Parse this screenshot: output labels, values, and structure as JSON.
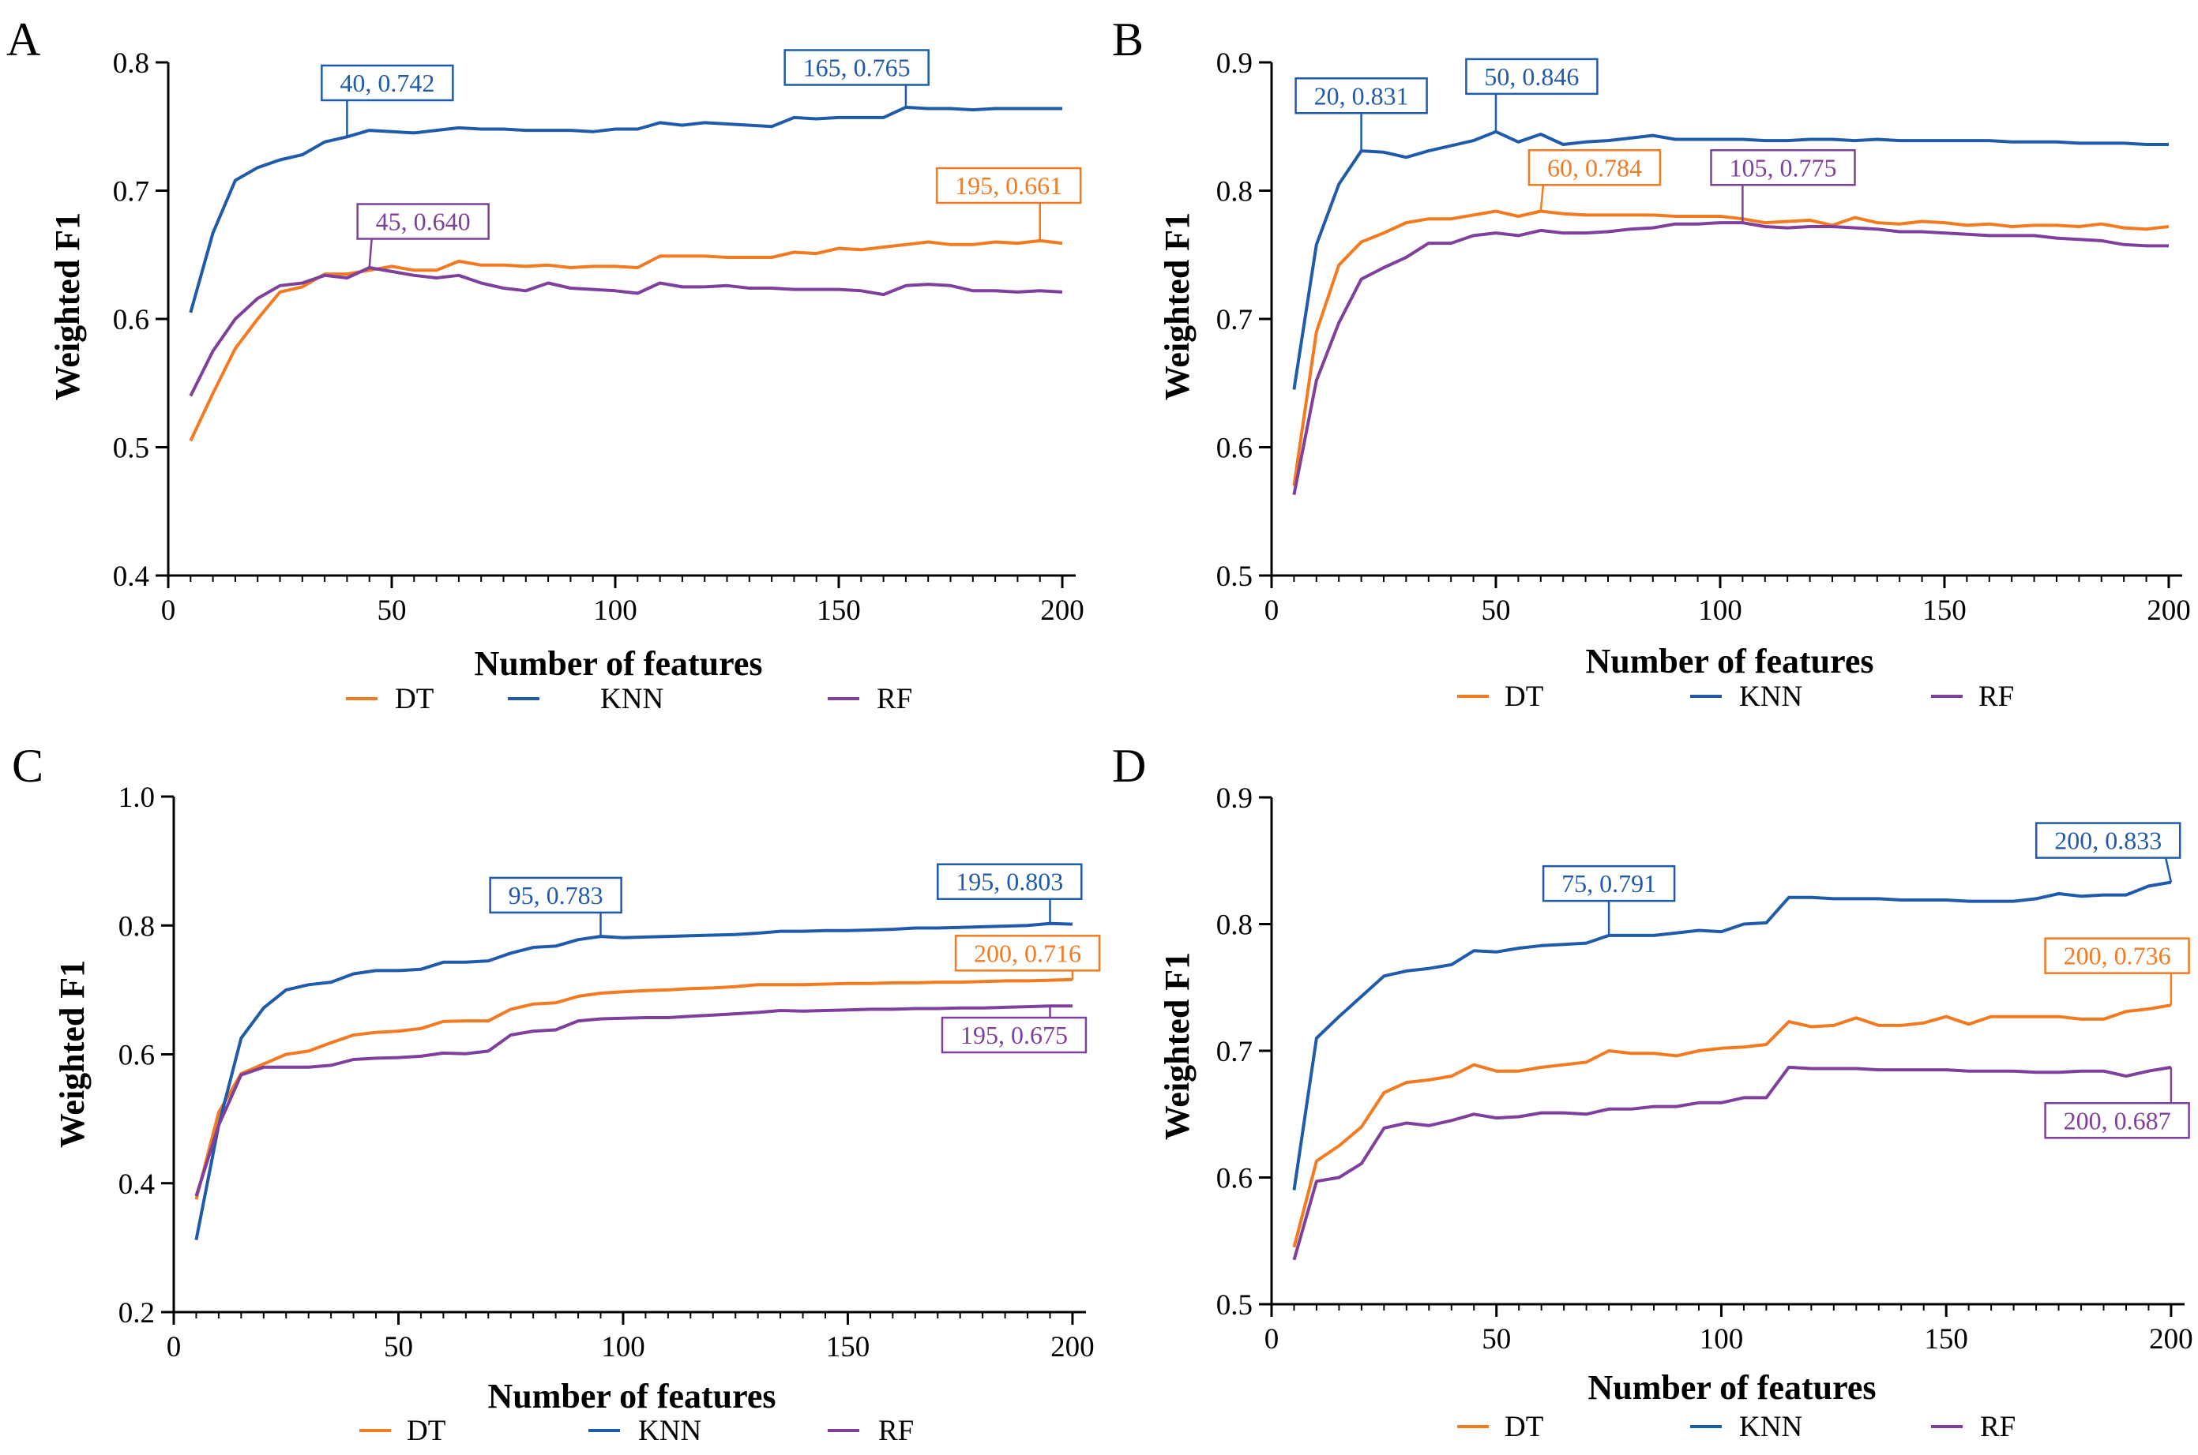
{
  "colors": {
    "DT": "#F47A20",
    "KNN": "#1F5BAA",
    "RF": "#7F3F9C",
    "axis": "#000000"
  },
  "chart_data": [
    {
      "panel": "A",
      "type": "line",
      "xlabel": "Number of features",
      "ylabel": "Weighted F1",
      "xlim": [
        0,
        203
      ],
      "ylim": [
        0.4,
        0.8
      ],
      "xticks": [
        0,
        50,
        100,
        150,
        200
      ],
      "xtick_labels": [
        "0",
        "50",
        "100",
        "150",
        "200"
      ],
      "yticks": [
        0.4,
        0.5,
        0.6,
        0.7,
        0.8
      ],
      "ytick_labels": [
        "0.4",
        "0.5",
        "0.6",
        "0.7",
        "0.8"
      ],
      "x": [
        5,
        10,
        15,
        20,
        25,
        30,
        35,
        40,
        45,
        50,
        55,
        60,
        65,
        70,
        75,
        80,
        85,
        90,
        95,
        100,
        105,
        110,
        115,
        120,
        125,
        130,
        135,
        140,
        145,
        150,
        155,
        160,
        165,
        170,
        175,
        180,
        185,
        190,
        195,
        200
      ],
      "series": [
        {
          "name": "DT",
          "color_key": "DT",
          "values": [
            0.505,
            0.542,
            0.577,
            0.6,
            0.621,
            0.625,
            0.635,
            0.635,
            0.638,
            0.641,
            0.638,
            0.638,
            0.645,
            0.642,
            0.642,
            0.641,
            0.642,
            0.64,
            0.641,
            0.641,
            0.64,
            0.649,
            0.649,
            0.649,
            0.648,
            0.648,
            0.648,
            0.652,
            0.651,
            0.655,
            0.654,
            0.656,
            0.658,
            0.66,
            0.658,
            0.658,
            0.66,
            0.659,
            0.661,
            0.659
          ]
        },
        {
          "name": "KNN",
          "color_key": "KNN",
          "values": [
            0.605,
            0.667,
            0.708,
            0.718,
            0.724,
            0.728,
            0.738,
            0.742,
            0.747,
            0.746,
            0.745,
            0.747,
            0.749,
            0.748,
            0.748,
            0.747,
            0.747,
            0.747,
            0.746,
            0.748,
            0.748,
            0.753,
            0.751,
            0.753,
            0.752,
            0.751,
            0.75,
            0.757,
            0.756,
            0.757,
            0.757,
            0.757,
            0.765,
            0.764,
            0.764,
            0.763,
            0.764,
            0.764,
            0.764,
            0.764
          ]
        },
        {
          "name": "RF",
          "color_key": "RF",
          "values": [
            0.54,
            0.575,
            0.6,
            0.616,
            0.626,
            0.628,
            0.634,
            0.632,
            0.64,
            0.637,
            0.634,
            0.632,
            0.634,
            0.628,
            0.624,
            0.622,
            0.628,
            0.624,
            0.623,
            0.622,
            0.62,
            0.628,
            0.625,
            0.625,
            0.626,
            0.624,
            0.624,
            0.623,
            0.623,
            0.623,
            0.622,
            0.619,
            0.626,
            0.627,
            0.626,
            0.622,
            0.622,
            0.621,
            0.622,
            0.621
          ]
        }
      ],
      "annotations": [
        {
          "text": "40, 0.742",
          "x": 40,
          "y": 0.742,
          "color_key": "KNN",
          "bx": 49,
          "by": 0.784
        },
        {
          "text": "165, 0.765",
          "x": 165,
          "y": 0.765,
          "color_key": "KNN",
          "bx": 154,
          "by": 0.796
        },
        {
          "text": "195, 0.661",
          "x": 195,
          "y": 0.661,
          "color_key": "DT",
          "bx": 188,
          "by": 0.704
        },
        {
          "text": "45, 0.640",
          "x": 45,
          "y": 0.64,
          "color_key": "RF",
          "bx": 57,
          "by": 0.676
        }
      ],
      "legend": [
        "DT",
        "KNN",
        "RF"
      ]
    },
    {
      "panel": "B",
      "type": "line",
      "xlabel": "Number of features",
      "ylabel": "Weighted F1",
      "xlim": [
        0,
        203
      ],
      "ylim": [
        0.5,
        0.9
      ],
      "xticks": [
        0,
        50,
        100,
        150,
        200
      ],
      "xtick_labels": [
        "0",
        "50",
        "100",
        "150",
        "200"
      ],
      "yticks": [
        0.5,
        0.6,
        0.7,
        0.8,
        0.9
      ],
      "ytick_labels": [
        "0.5",
        "0.6",
        "0.7",
        "0.8",
        "0.9"
      ],
      "x": [
        5,
        10,
        15,
        20,
        25,
        30,
        35,
        40,
        45,
        50,
        55,
        60,
        65,
        70,
        75,
        80,
        85,
        90,
        95,
        100,
        105,
        110,
        115,
        120,
        125,
        130,
        135,
        140,
        145,
        150,
        155,
        160,
        165,
        170,
        175,
        180,
        185,
        190,
        195,
        200
      ],
      "series": [
        {
          "name": "DT",
          "color_key": "DT",
          "values": [
            0.57,
            0.69,
            0.742,
            0.76,
            0.767,
            0.775,
            0.778,
            0.778,
            0.781,
            0.784,
            0.78,
            0.784,
            0.782,
            0.781,
            0.781,
            0.781,
            0.781,
            0.78,
            0.78,
            0.78,
            0.778,
            0.775,
            0.776,
            0.777,
            0.773,
            0.779,
            0.775,
            0.774,
            0.776,
            0.775,
            0.773,
            0.774,
            0.772,
            0.773,
            0.773,
            0.772,
            0.774,
            0.771,
            0.77,
            0.772
          ]
        },
        {
          "name": "KNN",
          "color_key": "KNN",
          "values": [
            0.645,
            0.758,
            0.805,
            0.831,
            0.83,
            0.826,
            0.831,
            0.835,
            0.839,
            0.846,
            0.838,
            0.844,
            0.836,
            0.838,
            0.839,
            0.841,
            0.843,
            0.84,
            0.84,
            0.84,
            0.84,
            0.839,
            0.839,
            0.84,
            0.84,
            0.839,
            0.84,
            0.839,
            0.839,
            0.839,
            0.839,
            0.839,
            0.838,
            0.838,
            0.838,
            0.837,
            0.837,
            0.837,
            0.836,
            0.836
          ]
        },
        {
          "name": "RF",
          "color_key": "RF",
          "values": [
            0.563,
            0.652,
            0.697,
            0.731,
            0.74,
            0.748,
            0.759,
            0.759,
            0.765,
            0.767,
            0.765,
            0.769,
            0.767,
            0.767,
            0.768,
            0.77,
            0.771,
            0.774,
            0.774,
            0.775,
            0.775,
            0.772,
            0.771,
            0.772,
            0.772,
            0.771,
            0.77,
            0.768,
            0.768,
            0.767,
            0.766,
            0.765,
            0.765,
            0.765,
            0.763,
            0.762,
            0.761,
            0.758,
            0.757,
            0.757
          ]
        }
      ],
      "annotations": [
        {
          "text": "20, 0.831",
          "x": 20,
          "y": 0.831,
          "color_key": "KNN",
          "bx": 20,
          "by": 0.874
        },
        {
          "text": "50, 0.846",
          "x": 50,
          "y": 0.846,
          "color_key": "KNN",
          "bx": 58,
          "by": 0.889
        },
        {
          "text": "60, 0.784",
          "x": 60,
          "y": 0.784,
          "color_key": "DT",
          "bx": 72,
          "by": 0.818
        },
        {
          "text": "105, 0.775",
          "x": 105,
          "y": 0.775,
          "color_key": "RF",
          "bx": 114,
          "by": 0.818
        }
      ],
      "legend": [
        "DT",
        "KNN",
        "RF"
      ]
    },
    {
      "panel": "C",
      "type": "line",
      "xlabel": "Number of features",
      "ylabel": "Weighted F1",
      "xlim": [
        0,
        203
      ],
      "ylim": [
        0.2,
        1.0
      ],
      "xticks": [
        0,
        50,
        100,
        150,
        200
      ],
      "xtick_labels": [
        "0",
        "50",
        "100",
        "150",
        "200"
      ],
      "yticks": [
        0.2,
        0.4,
        0.6,
        0.8,
        1.0
      ],
      "ytick_labels": [
        "0.2",
        "0.4",
        "0.6",
        "0.8",
        "1.0"
      ],
      "x": [
        5,
        10,
        15,
        20,
        25,
        30,
        35,
        40,
        45,
        50,
        55,
        60,
        65,
        70,
        75,
        80,
        85,
        90,
        95,
        100,
        105,
        110,
        115,
        120,
        125,
        130,
        135,
        140,
        145,
        150,
        155,
        160,
        165,
        170,
        175,
        180,
        185,
        190,
        195,
        200
      ],
      "series": [
        {
          "name": "DT",
          "color_key": "DT",
          "values": [
            0.375,
            0.51,
            0.57,
            0.585,
            0.6,
            0.605,
            0.618,
            0.63,
            0.634,
            0.636,
            0.64,
            0.651,
            0.652,
            0.652,
            0.67,
            0.678,
            0.68,
            0.69,
            0.695,
            0.697,
            0.699,
            0.7,
            0.702,
            0.703,
            0.705,
            0.708,
            0.708,
            0.708,
            0.709,
            0.71,
            0.71,
            0.711,
            0.711,
            0.712,
            0.712,
            0.713,
            0.714,
            0.714,
            0.715,
            0.716
          ]
        },
        {
          "name": "KNN",
          "color_key": "KNN",
          "values": [
            0.312,
            0.49,
            0.625,
            0.672,
            0.7,
            0.708,
            0.712,
            0.725,
            0.73,
            0.73,
            0.732,
            0.743,
            0.743,
            0.745,
            0.757,
            0.766,
            0.768,
            0.778,
            0.783,
            0.781,
            0.782,
            0.783,
            0.784,
            0.785,
            0.786,
            0.788,
            0.791,
            0.791,
            0.792,
            0.792,
            0.793,
            0.794,
            0.796,
            0.796,
            0.797,
            0.798,
            0.799,
            0.8,
            0.803,
            0.802
          ]
        },
        {
          "name": "RF",
          "color_key": "RF",
          "values": [
            0.38,
            0.49,
            0.568,
            0.58,
            0.58,
            0.58,
            0.583,
            0.592,
            0.594,
            0.595,
            0.597,
            0.602,
            0.601,
            0.605,
            0.63,
            0.636,
            0.638,
            0.652,
            0.655,
            0.656,
            0.657,
            0.657,
            0.659,
            0.661,
            0.663,
            0.665,
            0.668,
            0.667,
            0.668,
            0.669,
            0.67,
            0.67,
            0.671,
            0.671,
            0.672,
            0.672,
            0.673,
            0.674,
            0.675,
            0.675
          ]
        }
      ],
      "annotations": [
        {
          "text": "95, 0.783",
          "x": 95,
          "y": 0.783,
          "color_key": "KNN",
          "bx": 85,
          "by": 0.847
        },
        {
          "text": "195, 0.803",
          "x": 195,
          "y": 0.803,
          "color_key": "KNN",
          "bx": 186,
          "by": 0.868
        },
        {
          "text": "200, 0.716",
          "x": 200,
          "y": 0.716,
          "color_key": "DT",
          "bx": 190,
          "by": 0.757
        },
        {
          "text": "195, 0.675",
          "x": 195,
          "y": 0.675,
          "color_key": "RF",
          "bx": 187,
          "by": 0.63
        }
      ],
      "legend": [
        "DT",
        "KNN",
        "RF"
      ]
    },
    {
      "panel": "D",
      "type": "line",
      "xlabel": "Number of features",
      "ylabel": "Weighted F1",
      "xlim": [
        0,
        203
      ],
      "ylim": [
        0.5,
        0.9
      ],
      "xticks": [
        0,
        50,
        100,
        150,
        200
      ],
      "xtick_labels": [
        "0",
        "50",
        "100",
        "150",
        "200"
      ],
      "yticks": [
        0.5,
        0.6,
        0.7,
        0.8,
        0.9
      ],
      "ytick_labels": [
        "0.5",
        "0.6",
        "0.7",
        "0.8",
        "0.9"
      ],
      "x": [
        5,
        10,
        15,
        20,
        25,
        30,
        35,
        40,
        45,
        50,
        55,
        60,
        65,
        70,
        75,
        80,
        85,
        90,
        95,
        100,
        105,
        110,
        115,
        120,
        125,
        130,
        135,
        140,
        145,
        150,
        155,
        160,
        165,
        170,
        175,
        180,
        185,
        190,
        195,
        200
      ],
      "series": [
        {
          "name": "DT",
          "color_key": "DT",
          "values": [
            0.545,
            0.613,
            0.625,
            0.64,
            0.667,
            0.675,
            0.677,
            0.68,
            0.689,
            0.684,
            0.684,
            0.687,
            0.689,
            0.691,
            0.7,
            0.698,
            0.698,
            0.696,
            0.7,
            0.702,
            0.703,
            0.705,
            0.723,
            0.719,
            0.72,
            0.726,
            0.72,
            0.72,
            0.722,
            0.727,
            0.721,
            0.727,
            0.727,
            0.727,
            0.727,
            0.725,
            0.725,
            0.731,
            0.733,
            0.736
          ]
        },
        {
          "name": "KNN",
          "color_key": "KNN",
          "values": [
            0.59,
            0.71,
            0.727,
            0.743,
            0.759,
            0.763,
            0.765,
            0.768,
            0.779,
            0.778,
            0.781,
            0.783,
            0.784,
            0.785,
            0.791,
            0.791,
            0.791,
            0.793,
            0.795,
            0.794,
            0.8,
            0.801,
            0.821,
            0.821,
            0.82,
            0.82,
            0.82,
            0.819,
            0.819,
            0.819,
            0.818,
            0.818,
            0.818,
            0.82,
            0.824,
            0.822,
            0.823,
            0.823,
            0.83,
            0.833
          ]
        },
        {
          "name": "RF",
          "color_key": "RF",
          "values": [
            0.535,
            0.597,
            0.6,
            0.611,
            0.639,
            0.643,
            0.641,
            0.645,
            0.65,
            0.647,
            0.648,
            0.651,
            0.651,
            0.65,
            0.654,
            0.654,
            0.656,
            0.656,
            0.659,
            0.659,
            0.663,
            0.663,
            0.687,
            0.686,
            0.686,
            0.686,
            0.685,
            0.685,
            0.685,
            0.685,
            0.684,
            0.684,
            0.684,
            0.683,
            0.683,
            0.684,
            0.684,
            0.68,
            0.684,
            0.687
          ]
        }
      ],
      "annotations": [
        {
          "text": "75, 0.791",
          "x": 75,
          "y": 0.791,
          "color_key": "KNN",
          "bx": 75,
          "by": 0.832
        },
        {
          "text": "200, 0.833",
          "x": 200,
          "y": 0.833,
          "color_key": "KNN",
          "bx": 186,
          "by": 0.866
        },
        {
          "text": "200, 0.736",
          "x": 200,
          "y": 0.736,
          "color_key": "DT",
          "bx": 188,
          "by": 0.775
        },
        {
          "text": "200, 0.687",
          "x": 200,
          "y": 0.687,
          "color_key": "RF",
          "bx": 188,
          "by": 0.645
        }
      ],
      "legend": [
        "DT",
        "KNN",
        "RF"
      ]
    }
  ]
}
